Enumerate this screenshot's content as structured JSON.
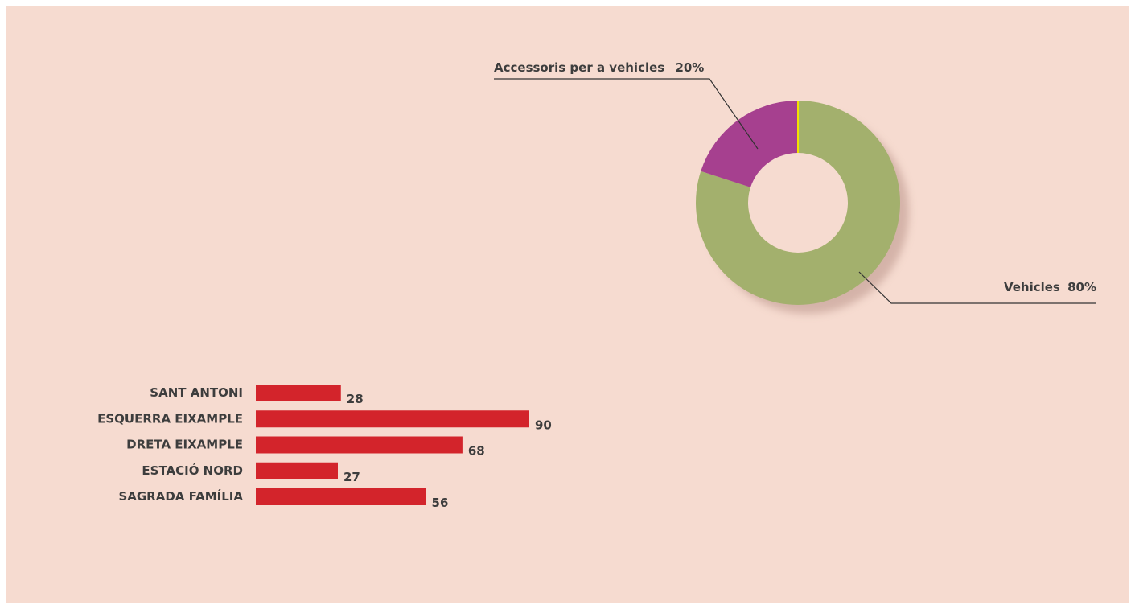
{
  "colors": {
    "background": "#f6dbd0",
    "bar": "#d3242b",
    "donut_vehicles": "#a3b06d",
    "donut_accessories": "#a6408f",
    "donut_divider": "#f2e000",
    "leader_line": "#333333",
    "text": "#3d3d3d"
  },
  "chart_data": [
    {
      "type": "pie",
      "donut": true,
      "slices": [
        {
          "label": "Vehicles",
          "value": 80,
          "value_label": "80%",
          "color": "#a3b06d"
        },
        {
          "label": "Accessoris per a vehicles",
          "value": 20,
          "value_label": "20%",
          "color": "#a6408f"
        }
      ]
    },
    {
      "type": "bar",
      "orientation": "horizontal",
      "categories": [
        "SANT ANTONI",
        "ESQUERRA EIXAMPLE",
        "DRETA EIXAMPLE",
        "ESTACIÓ NORD",
        "SAGRADA FAMÍLIA"
      ],
      "values": [
        28,
        90,
        68,
        27,
        56
      ],
      "xlim": [
        0,
        90
      ],
      "grid": false,
      "color": "#d3242b"
    }
  ]
}
